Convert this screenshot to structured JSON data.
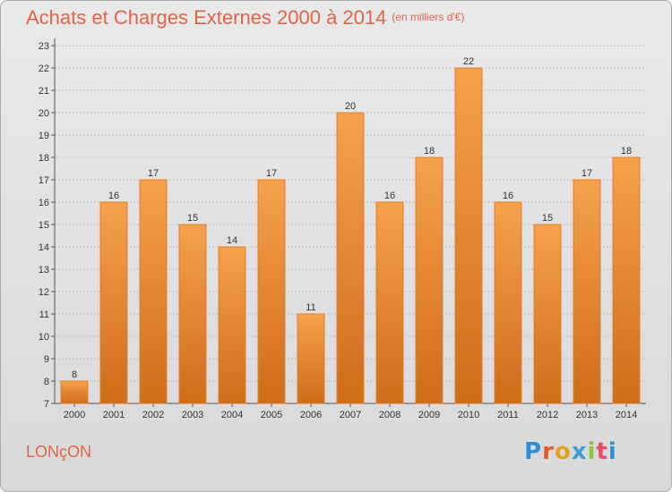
{
  "header": {
    "title": "Achats et Charges Externes 2000 à 2014",
    "unit": "(en milliers d'€)"
  },
  "footer": {
    "place": "LONçON",
    "brand": [
      "P",
      "r",
      "o",
      "x",
      "i",
      "t",
      "i"
    ]
  },
  "colors": {
    "bar_top": "#f6a14b",
    "bar_bottom": "#cf6c18",
    "title": "#e0644a"
  },
  "chart_data": {
    "type": "bar",
    "categories": [
      "2000",
      "2001",
      "2002",
      "2003",
      "2004",
      "2005",
      "2006",
      "2007",
      "2008",
      "2009",
      "2010",
      "2011",
      "2012",
      "2013",
      "2014"
    ],
    "values": [
      8,
      16,
      17,
      15,
      14,
      17,
      11,
      20,
      16,
      18,
      22,
      16,
      15,
      17,
      18
    ],
    "ylim": [
      7,
      23
    ],
    "yticks": [
      7,
      8,
      9,
      10,
      11,
      12,
      13,
      14,
      15,
      16,
      17,
      18,
      19,
      20,
      21,
      22,
      23
    ],
    "grid": true,
    "legend": "none"
  }
}
